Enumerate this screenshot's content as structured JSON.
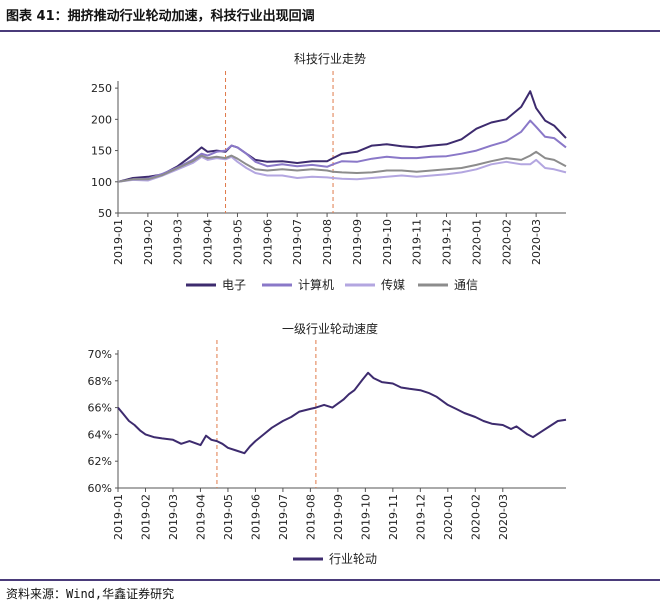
{
  "figure": {
    "title": "图表 41：拥挤推动行业轮动加速，科技行业出现回调",
    "source": "资料来源：Wind,华鑫证券研究"
  },
  "chart_data": [
    {
      "type": "line",
      "title": "科技行业走势",
      "x_labels": [
        "2019-01",
        "2019-02",
        "2019-03",
        "2019-04",
        "2019-05",
        "2019-06",
        "2019-07",
        "2019-08",
        "2019-09",
        "2019-10",
        "2019-11",
        "2019-12",
        "2020-01",
        "2020-02",
        "2020-03"
      ],
      "yticks": [
        50,
        100,
        150,
        200,
        250
      ],
      "ylim": [
        50,
        255
      ],
      "vlines": [
        3.6,
        7.2
      ],
      "legend_position": "bottom",
      "grid": false,
      "series": [
        {
          "name": "电子",
          "color": "#3d2b6e",
          "values": [
            [
              0,
              100
            ],
            [
              0.5,
              106
            ],
            [
              1,
              108
            ],
            [
              1.5,
              112
            ],
            [
              2,
              125
            ],
            [
              2.5,
              143
            ],
            [
              2.8,
              155
            ],
            [
              3,
              148
            ],
            [
              3.3,
              150
            ],
            [
              3.6,
              148
            ],
            [
              3.8,
              158
            ],
            [
              4,
              155
            ],
            [
              4.3,
              145
            ],
            [
              4.6,
              135
            ],
            [
              5,
              132
            ],
            [
              5.5,
              133
            ],
            [
              6,
              130
            ],
            [
              6.5,
              133
            ],
            [
              7,
              133
            ],
            [
              7.2,
              138
            ],
            [
              7.5,
              145
            ],
            [
              8,
              148
            ],
            [
              8.5,
              158
            ],
            [
              9,
              160
            ],
            [
              9.5,
              157
            ],
            [
              10,
              155
            ],
            [
              10.5,
              158
            ],
            [
              11,
              160
            ],
            [
              11.5,
              168
            ],
            [
              12,
              185
            ],
            [
              12.5,
              195
            ],
            [
              13,
              200
            ],
            [
              13.5,
              220
            ],
            [
              13.8,
              245
            ],
            [
              14,
              218
            ],
            [
              14.3,
              198
            ],
            [
              14.6,
              190
            ],
            [
              15,
              170
            ]
          ]
        },
        {
          "name": "计算机",
          "color": "#8a78c8",
          "values": [
            [
              0,
              100
            ],
            [
              0.5,
              104
            ],
            [
              1,
              105
            ],
            [
              1.5,
              113
            ],
            [
              2,
              123
            ],
            [
              2.5,
              135
            ],
            [
              2.8,
              145
            ],
            [
              3,
              142
            ],
            [
              3.3,
              148
            ],
            [
              3.6,
              150
            ],
            [
              3.8,
              158
            ],
            [
              4,
              155
            ],
            [
              4.3,
              145
            ],
            [
              4.6,
              132
            ],
            [
              5,
              125
            ],
            [
              5.5,
              128
            ],
            [
              6,
              125
            ],
            [
              6.5,
              127
            ],
            [
              7,
              124
            ],
            [
              7.2,
              128
            ],
            [
              7.5,
              133
            ],
            [
              8,
              132
            ],
            [
              8.5,
              137
            ],
            [
              9,
              140
            ],
            [
              9.5,
              138
            ],
            [
              10,
              138
            ],
            [
              10.5,
              140
            ],
            [
              11,
              141
            ],
            [
              11.5,
              145
            ],
            [
              12,
              150
            ],
            [
              12.5,
              158
            ],
            [
              13,
              165
            ],
            [
              13.5,
              180
            ],
            [
              13.8,
              198
            ],
            [
              14,
              188
            ],
            [
              14.3,
              172
            ],
            [
              14.6,
              170
            ],
            [
              15,
              155
            ]
          ]
        },
        {
          "name": "传媒",
          "color": "#b3a6e0",
          "values": [
            [
              0,
              100
            ],
            [
              0.5,
              103
            ],
            [
              1,
              102
            ],
            [
              1.5,
              110
            ],
            [
              2,
              120
            ],
            [
              2.5,
              130
            ],
            [
              2.8,
              140
            ],
            [
              3,
              135
            ],
            [
              3.3,
              138
            ],
            [
              3.6,
              136
            ],
            [
              3.8,
              140
            ],
            [
              4,
              132
            ],
            [
              4.3,
              122
            ],
            [
              4.6,
              114
            ],
            [
              5,
              110
            ],
            [
              5.5,
              110
            ],
            [
              6,
              106
            ],
            [
              6.5,
              108
            ],
            [
              7,
              107
            ],
            [
              7.2,
              106
            ],
            [
              7.5,
              105
            ],
            [
              8,
              104
            ],
            [
              8.5,
              106
            ],
            [
              9,
              108
            ],
            [
              9.5,
              110
            ],
            [
              10,
              108
            ],
            [
              10.5,
              110
            ],
            [
              11,
              112
            ],
            [
              11.5,
              115
            ],
            [
              12,
              120
            ],
            [
              12.5,
              128
            ],
            [
              13,
              132
            ],
            [
              13.5,
              128
            ],
            [
              13.8,
              128
            ],
            [
              14,
              135
            ],
            [
              14.3,
              122
            ],
            [
              14.6,
              120
            ],
            [
              15,
              115
            ]
          ]
        },
        {
          "name": "通信",
          "color": "#8c8c8c",
          "values": [
            [
              0,
              100
            ],
            [
              0.5,
              104
            ],
            [
              1,
              104
            ],
            [
              1.5,
              111
            ],
            [
              2,
              122
            ],
            [
              2.5,
              133
            ],
            [
              2.8,
              142
            ],
            [
              3,
              138
            ],
            [
              3.3,
              140
            ],
            [
              3.6,
              138
            ],
            [
              3.8,
              142
            ],
            [
              4,
              137
            ],
            [
              4.3,
              128
            ],
            [
              4.6,
              120
            ],
            [
              5,
              118
            ],
            [
              5.5,
              120
            ],
            [
              6,
              118
            ],
            [
              6.5,
              120
            ],
            [
              7,
              118
            ],
            [
              7.2,
              116
            ],
            [
              7.5,
              115
            ],
            [
              8,
              114
            ],
            [
              8.5,
              115
            ],
            [
              9,
              118
            ],
            [
              9.5,
              118
            ],
            [
              10,
              116
            ],
            [
              10.5,
              118
            ],
            [
              11,
              120
            ],
            [
              11.5,
              122
            ],
            [
              12,
              127
            ],
            [
              12.5,
              133
            ],
            [
              13,
              138
            ],
            [
              13.5,
              135
            ],
            [
              13.8,
              142
            ],
            [
              14,
              148
            ],
            [
              14.3,
              138
            ],
            [
              14.6,
              135
            ],
            [
              15,
              125
            ]
          ]
        }
      ]
    },
    {
      "type": "line",
      "title": "一级行业轮动速度",
      "x_labels": [
        "2019-01",
        "2019-02",
        "2019-03",
        "2019-04",
        "2019-05",
        "2019-06",
        "2019-07",
        "2019-08",
        "2019-09",
        "2019-10",
        "2019-11",
        "2019-12",
        "2020-01",
        "2020-02",
        "2020-03"
      ],
      "yticks": [
        "60%",
        "62%",
        "64%",
        "66%",
        "68%",
        "70%"
      ],
      "ylim": [
        60,
        70
      ],
      "vlines": [
        3.6,
        7.2
      ],
      "legend_position": "bottom",
      "grid": false,
      "series": [
        {
          "name": "行业轮动",
          "color": "#3d2b6e",
          "values": [
            [
              0,
              66.0
            ],
            [
              0.2,
              65.5
            ],
            [
              0.4,
              65.0
            ],
            [
              0.6,
              64.7
            ],
            [
              0.8,
              64.3
            ],
            [
              1,
              64.0
            ],
            [
              1.3,
              63.8
            ],
            [
              1.6,
              63.7
            ],
            [
              2,
              63.6
            ],
            [
              2.3,
              63.3
            ],
            [
              2.6,
              63.5
            ],
            [
              3,
              63.2
            ],
            [
              3.2,
              63.9
            ],
            [
              3.4,
              63.6
            ],
            [
              3.6,
              63.5
            ],
            [
              3.8,
              63.3
            ],
            [
              4,
              63.0
            ],
            [
              4.3,
              62.8
            ],
            [
              4.6,
              62.6
            ],
            [
              4.8,
              63.1
            ],
            [
              5,
              63.5
            ],
            [
              5.3,
              64.0
            ],
            [
              5.6,
              64.5
            ],
            [
              6,
              65.0
            ],
            [
              6.3,
              65.3
            ],
            [
              6.6,
              65.7
            ],
            [
              7,
              65.9
            ],
            [
              7.2,
              66.0
            ],
            [
              7.5,
              66.2
            ],
            [
              7.8,
              66.0
            ],
            [
              8,
              66.3
            ],
            [
              8.2,
              66.6
            ],
            [
              8.4,
              67.0
            ],
            [
              8.6,
              67.3
            ],
            [
              8.9,
              68.1
            ],
            [
              9.1,
              68.6
            ],
            [
              9.3,
              68.2
            ],
            [
              9.6,
              67.9
            ],
            [
              10,
              67.8
            ],
            [
              10.3,
              67.5
            ],
            [
              10.6,
              67.4
            ],
            [
              11,
              67.3
            ],
            [
              11.3,
              67.1
            ],
            [
              11.6,
              66.8
            ],
            [
              12,
              66.2
            ],
            [
              12.3,
              65.9
            ],
            [
              12.6,
              65.6
            ],
            [
              13,
              65.3
            ],
            [
              13.3,
              65.0
            ],
            [
              13.6,
              64.8
            ],
            [
              14,
              64.7
            ],
            [
              14.3,
              64.4
            ],
            [
              14.5,
              64.6
            ],
            [
              14.7,
              64.3
            ],
            [
              14.9,
              64.0
            ],
            [
              15.1,
              63.8
            ],
            [
              15.4,
              64.2
            ],
            [
              15.7,
              64.6
            ],
            [
              16,
              65.0
            ],
            [
              16.3,
              65.1
            ]
          ]
        }
      ]
    }
  ]
}
